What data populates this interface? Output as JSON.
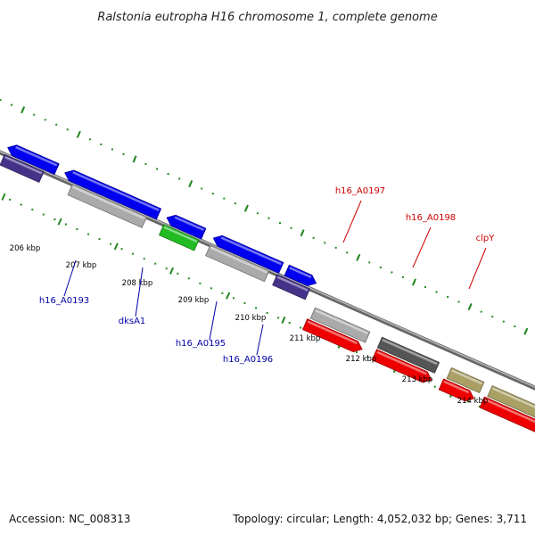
{
  "title": "Ralstonia eutropha H16 chromosome 1, complete genome",
  "footer": {
    "accession": "Accession: NC_008313",
    "summary": "Topology: circular; Length: 4,052,032 bp; Genes: 3,711"
  },
  "colors": {
    "forward_label": "#cc0000",
    "reverse_label": "#0000aa",
    "backbone": "#888888",
    "tick": "#228822"
  },
  "scale_ticks": [
    "206 kbp",
    "207 kbp",
    "208 kbp",
    "209 kbp",
    "210 kbp",
    "211 kbp",
    "212 kbp",
    "213 kbp",
    "214 kbp"
  ],
  "features": [
    {
      "name": "",
      "strand": "reverse",
      "color": "#0000ee"
    },
    {
      "name": "",
      "strand": "reverse",
      "color": "#443388"
    },
    {
      "name": "h16_A0193",
      "strand": "reverse",
      "color": "#0000ee"
    },
    {
      "name": "h16_A0193",
      "strand": "reverse",
      "color": "#aaaaaa"
    },
    {
      "name": "dksA1",
      "strand": "reverse",
      "color": "#0000ee"
    },
    {
      "name": "dksA1",
      "strand": "reverse",
      "color": "#22bb22"
    },
    {
      "name": "h16_A0195",
      "strand": "reverse",
      "color": "#0000ee"
    },
    {
      "name": "h16_A0195",
      "strand": "reverse",
      "color": "#aaaaaa"
    },
    {
      "name": "h16_A0196",
      "strand": "reverse",
      "color": "#0000ee"
    },
    {
      "name": "h16_A0196",
      "strand": "reverse",
      "color": "#443388"
    },
    {
      "name": "h16_A0197",
      "strand": "forward",
      "color": "#aaaaaa"
    },
    {
      "name": "h16_A0197",
      "strand": "forward",
      "color": "#ee0000"
    },
    {
      "name": "h16_A0198",
      "strand": "forward",
      "color": "#555555"
    },
    {
      "name": "h16_A0198",
      "strand": "forward",
      "color": "#ee0000"
    },
    {
      "name": "clpY",
      "strand": "forward",
      "color": "#aaa066"
    },
    {
      "name": "clpY",
      "strand": "forward",
      "color": "#ee0000"
    },
    {
      "name": "",
      "strand": "forward",
      "color": "#aaa066"
    },
    {
      "name": "",
      "strand": "forward",
      "color": "#ee0000"
    }
  ],
  "gene_labels": [
    {
      "text": "h16_A0193",
      "strand": "reverse"
    },
    {
      "text": "dksA1",
      "strand": "reverse"
    },
    {
      "text": "h16_A0195",
      "strand": "reverse"
    },
    {
      "text": "h16_A0196",
      "strand": "reverse"
    },
    {
      "text": "h16_A0197",
      "strand": "forward"
    },
    {
      "text": "h16_A0198",
      "strand": "forward"
    },
    {
      "text": "clpY",
      "strand": "forward"
    }
  ]
}
